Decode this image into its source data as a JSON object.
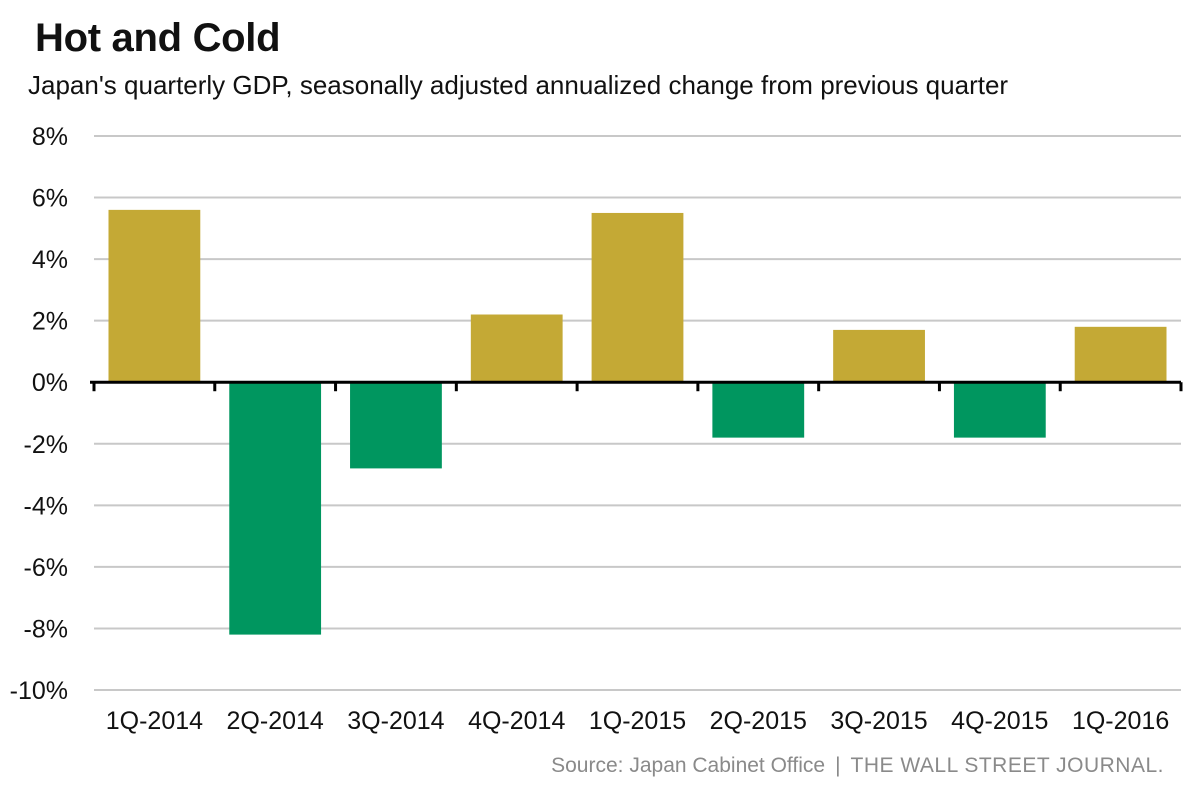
{
  "chart_data": {
    "type": "bar",
    "title": "Hot and Cold",
    "subtitle": "Japan's quarterly GDP, seasonally adjusted annualized change from previous quarter",
    "xlabel": "",
    "ylabel": "",
    "categories": [
      "1Q-2014",
      "2Q-2014",
      "3Q-2014",
      "4Q-2014",
      "1Q-2015",
      "2Q-2015",
      "3Q-2015",
      "4Q-2015",
      "1Q-2016"
    ],
    "values": [
      5.6,
      -8.2,
      -2.8,
      2.2,
      5.5,
      -1.8,
      1.7,
      -1.8,
      1.8
    ],
    "ylim": [
      -10,
      8
    ],
    "yticks": [
      8,
      6,
      4,
      2,
      0,
      -2,
      -4,
      -6,
      -8,
      -10
    ],
    "ytick_labels": [
      "8%",
      "6%",
      "4%",
      "2%",
      "0%",
      "-2%",
      "-4%",
      "-6%",
      "-8%",
      "-10%"
    ],
    "grid": true,
    "colors": {
      "positive": "#c4a935",
      "negative": "#00965f",
      "grid": "#c8c8c8",
      "axis": "#000000"
    }
  },
  "footer": {
    "source": "Source: Japan Cabinet Office",
    "separator": "|",
    "publisher": "THE WALL STREET JOURNAL."
  }
}
